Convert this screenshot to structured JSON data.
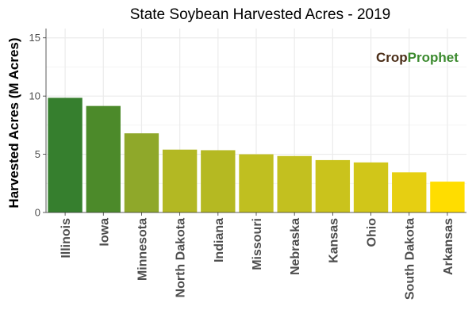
{
  "chart_data": {
    "type": "bar",
    "title": "State Soybean Harvested Acres - 2019",
    "ylabel": "Harvested Acres (M Acres)",
    "xlabel": "",
    "categories": [
      "Illinois",
      "Iowa",
      "Minnesota",
      "North Dakota",
      "Indiana",
      "Missouri",
      "Nebraska",
      "Kansas",
      "Ohio",
      "South Dakota",
      "Arkansas"
    ],
    "values": [
      9.85,
      9.15,
      6.8,
      5.4,
      5.35,
      5.0,
      4.85,
      4.5,
      4.3,
      3.45,
      2.65
    ],
    "colors": [
      "#367f2e",
      "#4c8a2a",
      "#8fa82a",
      "#b3b823",
      "#b5b922",
      "#c0bf20",
      "#c3c01f",
      "#cac31c",
      "#d1c619",
      "#e6cf12",
      "#ffdd00"
    ],
    "ylim": [
      0,
      15.8
    ],
    "yticks": [
      0,
      5,
      10,
      15
    ],
    "grid": true,
    "legend": "none"
  },
  "watermark": {
    "part1": "Crop",
    "part2": "Prophet",
    "color1": "#4b2e18",
    "color2": "#3b8a2e"
  }
}
